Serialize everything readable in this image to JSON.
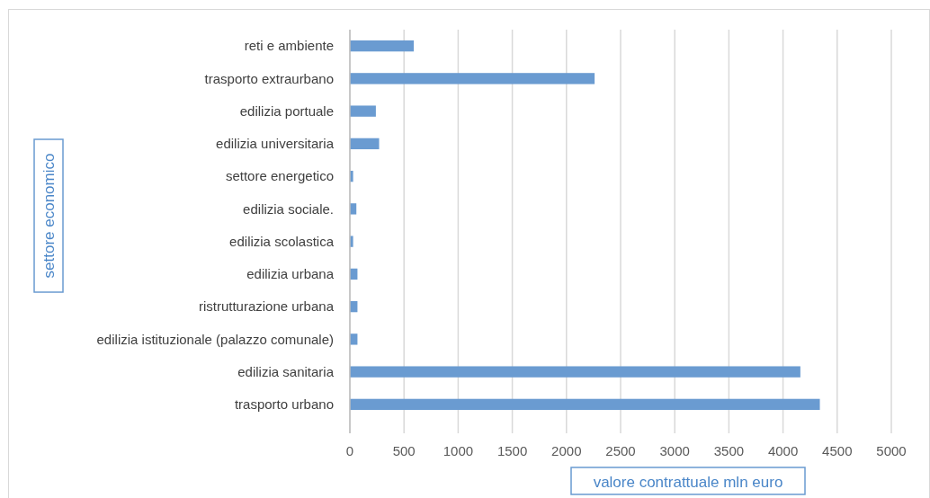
{
  "chart_data": {
    "type": "bar",
    "orientation": "horizontal",
    "xlabel": "valore contrattuale mln euro",
    "ylabel": "settore economico",
    "categories": [
      "reti e ambiente",
      "trasporto extraurbano",
      "edilizia portuale",
      "edilizia universitaria",
      "settore energetico",
      "edilizia sociale.",
      "edilizia scolastica",
      "edilizia urbana",
      "ristrutturazione urbana",
      "edilizia istituzionale (palazzo comunale)",
      "edilizia sanitaria",
      "trasporto urbano"
    ],
    "values": [
      590,
      2260,
      240,
      270,
      30,
      60,
      30,
      70,
      70,
      70,
      4160,
      4340
    ],
    "color": "#6a9bd1",
    "xlim": [
      0,
      5000
    ],
    "xticks": [
      0,
      500,
      1000,
      1500,
      2000,
      2500,
      3000,
      3500,
      4000,
      4500,
      5000
    ],
    "grid": "x"
  }
}
